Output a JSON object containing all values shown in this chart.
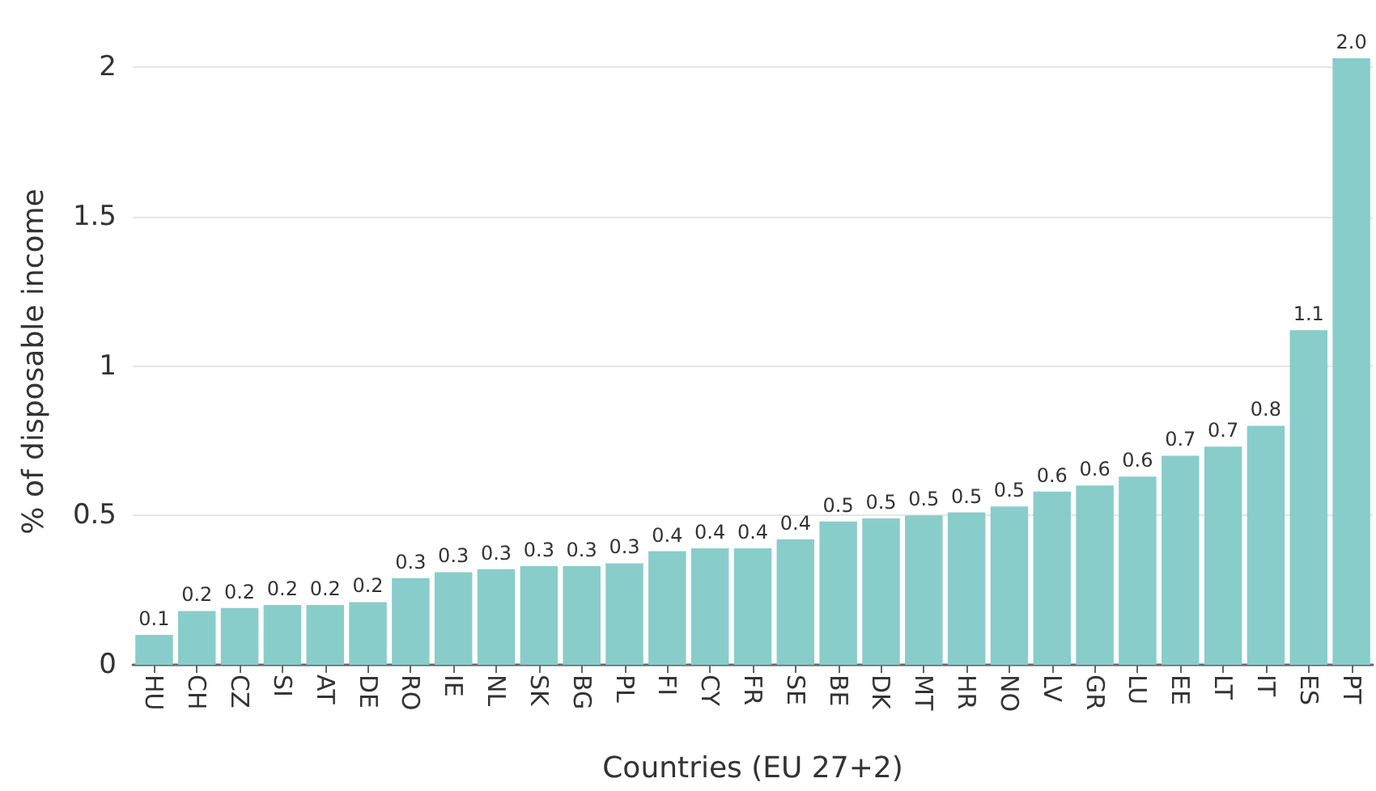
{
  "chart_data": {
    "type": "bar",
    "xlabel": "Countries (EU 27+2)",
    "ylabel": "% of disposable income",
    "categories": [
      "HU",
      "CH",
      "CZ",
      "SI",
      "AT",
      "DE",
      "RO",
      "IE",
      "NL",
      "SK",
      "BG",
      "PL",
      "FI",
      "CY",
      "FR",
      "SE",
      "BE",
      "DK",
      "MT",
      "HR",
      "NO",
      "LV",
      "GR",
      "LU",
      "EE",
      "LT",
      "IT",
      "ES",
      "PT"
    ],
    "values": [
      0.1,
      0.18,
      0.19,
      0.2,
      0.2,
      0.21,
      0.29,
      0.31,
      0.32,
      0.33,
      0.33,
      0.34,
      0.38,
      0.39,
      0.39,
      0.42,
      0.48,
      0.49,
      0.5,
      0.51,
      0.53,
      0.58,
      0.6,
      0.63,
      0.7,
      0.73,
      0.8,
      1.12,
      2.03
    ],
    "value_labels": [
      "0.1",
      "0.2",
      "0.2",
      "0.2",
      "0.2",
      "0.2",
      "0.3",
      "0.3",
      "0.3",
      "0.3",
      "0.3",
      "0.3",
      "0.4",
      "0.4",
      "0.4",
      "0.4",
      "0.5",
      "0.5",
      "0.5",
      "0.5",
      "0.5",
      "0.6",
      "0.6",
      "0.6",
      "0.7",
      "0.7",
      "0.8",
      "1.1",
      "2.0"
    ],
    "color": "#88cdca",
    "ylim": [
      0,
      2.03
    ],
    "yticks": [
      0,
      0.5,
      1,
      1.5,
      2
    ],
    "grid": "y"
  }
}
